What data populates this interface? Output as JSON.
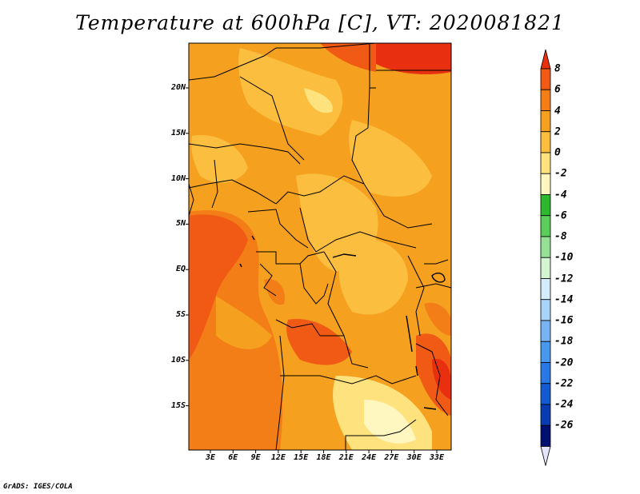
{
  "title": "Temperature at 600hPa [C], VT: 2020081821",
  "credit": "GrADS: IGES/COLA",
  "map": {
    "lat_labels": [
      "20N",
      "15N",
      "10N",
      "5N",
      "EQ",
      "5S",
      "10S",
      "15S"
    ],
    "lon_labels": [
      "3E",
      "6E",
      "9E",
      "12E",
      "15E",
      "18E",
      "21E",
      "24E",
      "27E",
      "30E",
      "33E"
    ],
    "background_color": "#f5a623"
  },
  "colorbar": {
    "levels": [
      "8",
      "6",
      "4",
      "2",
      "0",
      "-2",
      "-4",
      "-6",
      "-8",
      "-10",
      "-12",
      "-14",
      "-16",
      "-18",
      "-20",
      "-22",
      "-24",
      "-26"
    ],
    "colors": [
      "#e83010",
      "#f05a14",
      "#f37e18",
      "#f5a01e",
      "#fbbe3e",
      "#fde27e",
      "#fff6c0",
      "#2eb82e",
      "#5acd5a",
      "#96e096",
      "#d4f4d4",
      "#d6ecfa",
      "#a8d4f8",
      "#78b4f4",
      "#4898ee",
      "#2878e6",
      "#145ad0",
      "#083cb0",
      "#001070",
      "#e4e4fa"
    ]
  }
}
